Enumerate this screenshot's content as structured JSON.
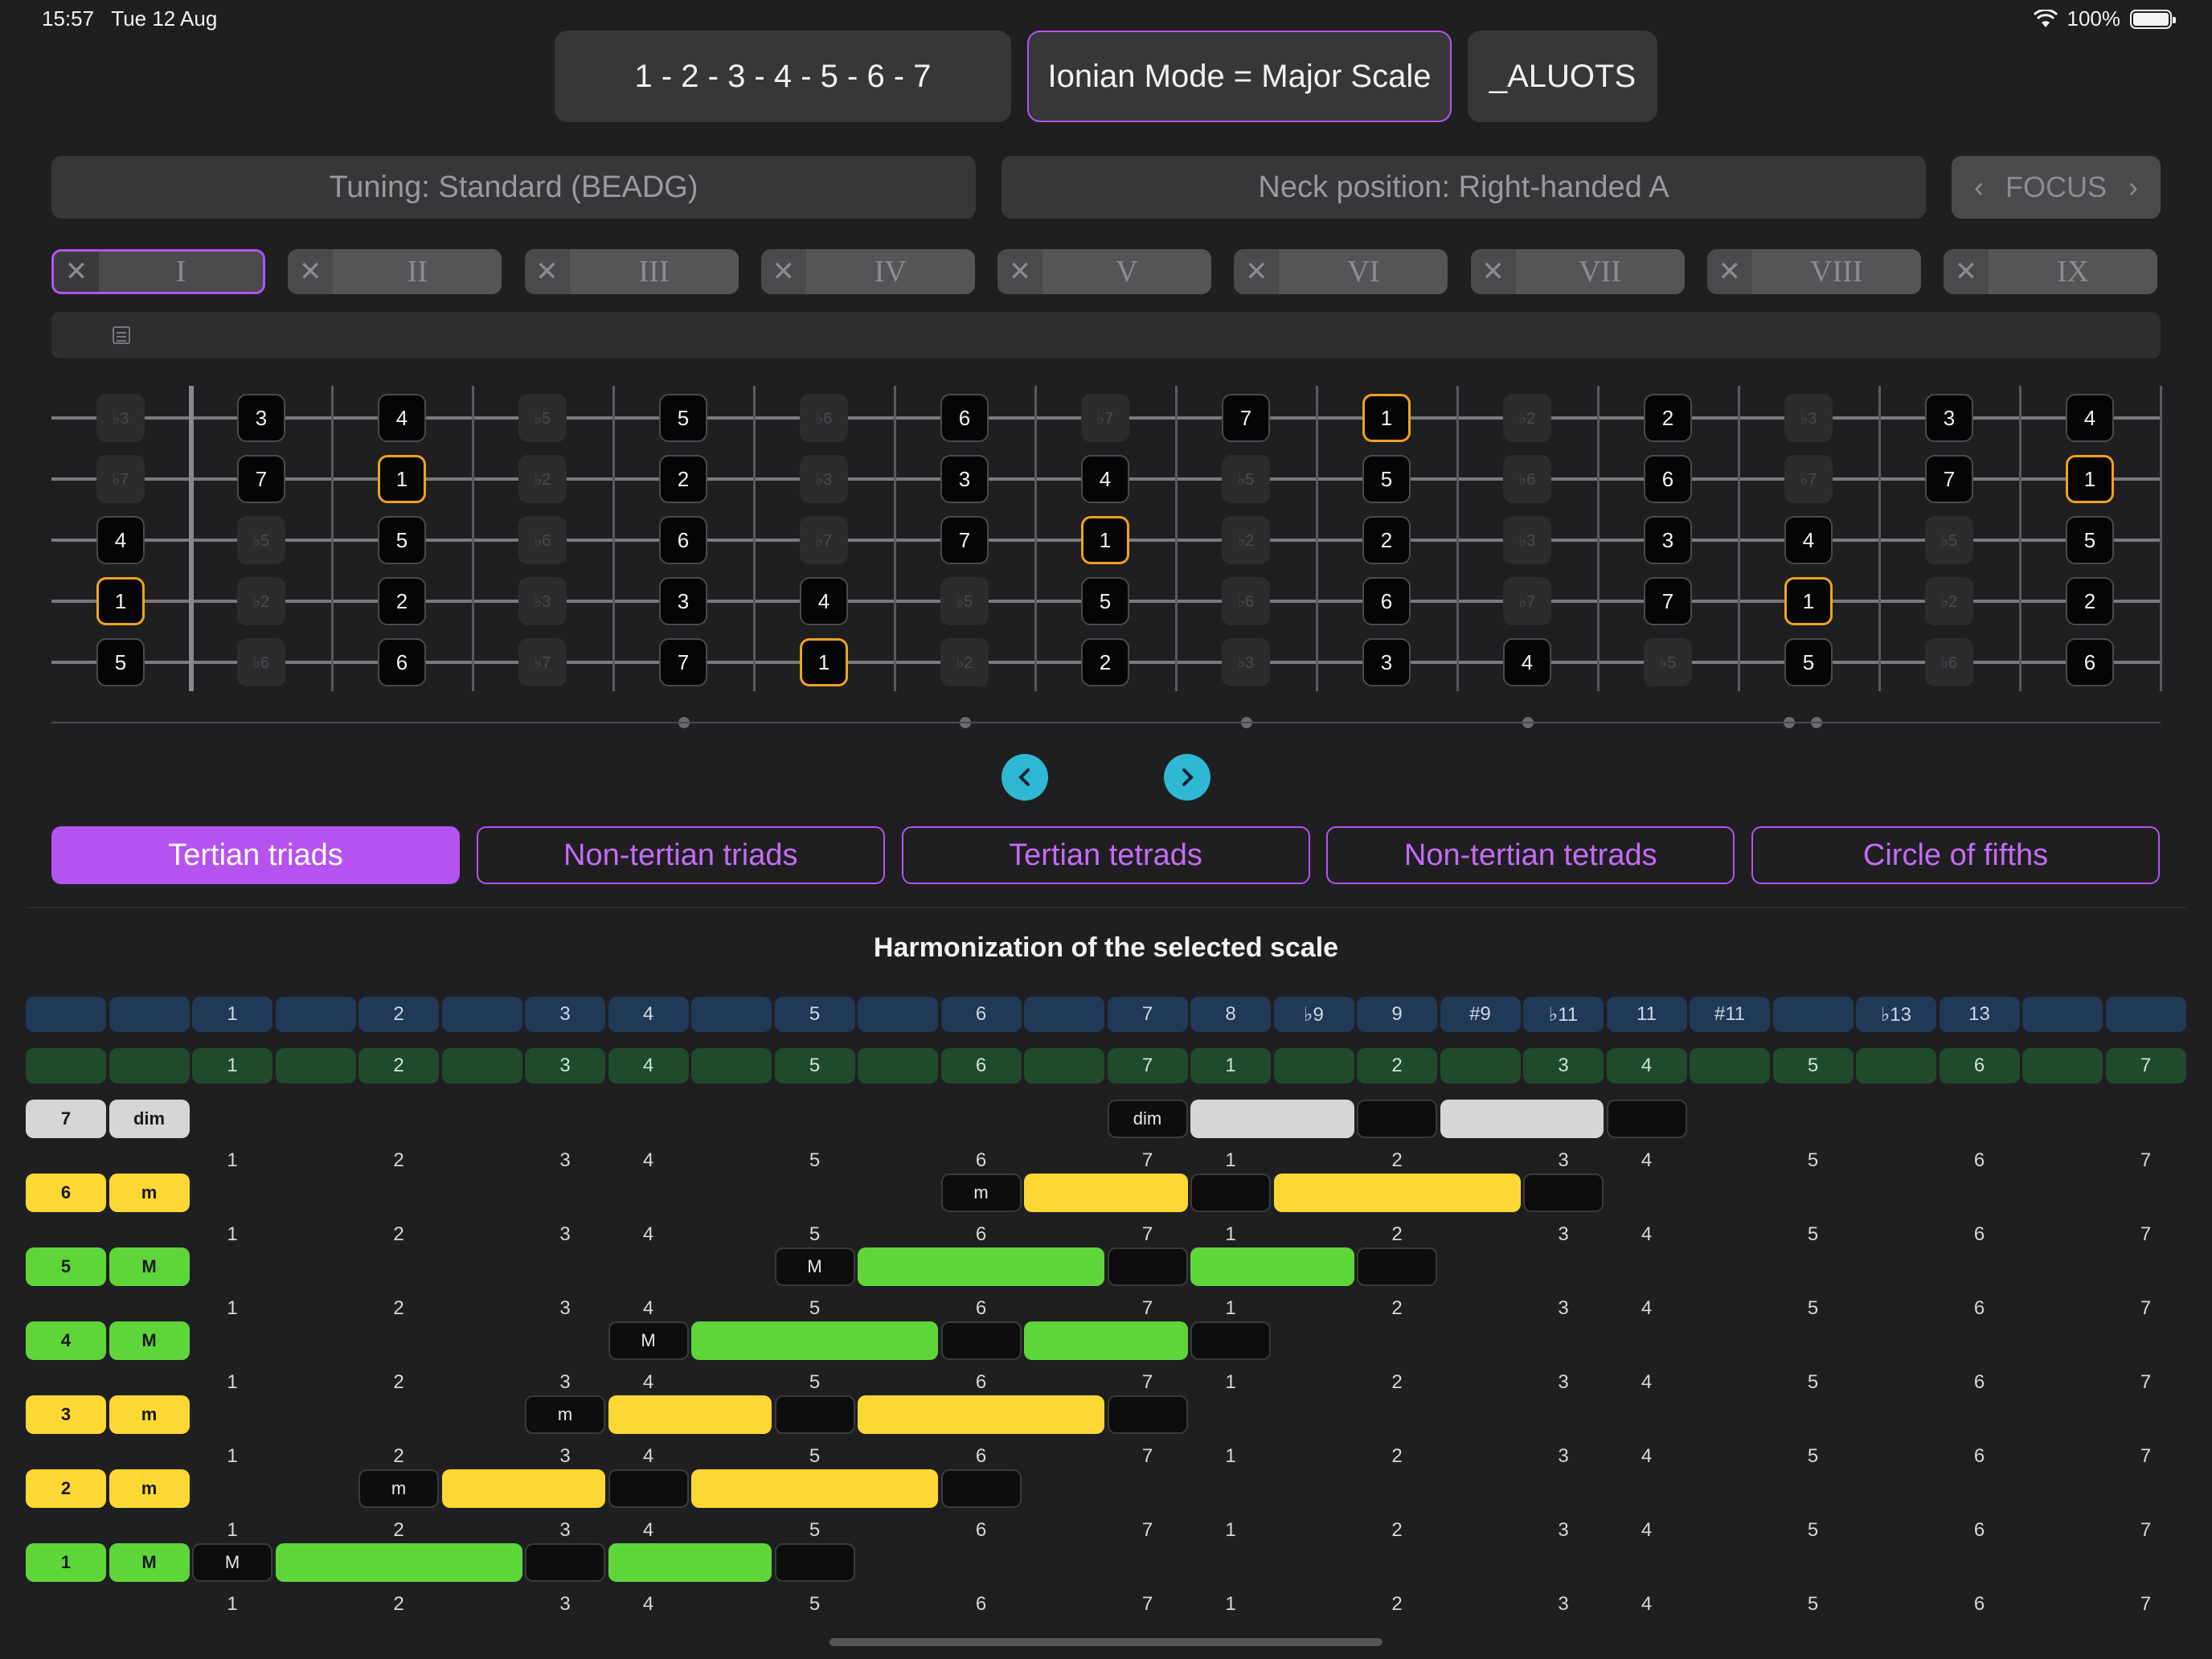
{
  "status": {
    "time": "15:57",
    "date": "Tue 12 Aug",
    "battery": "100%"
  },
  "top": {
    "intervals": "1 - 2 - 3 - 4 - 5 - 6 - 7",
    "mode": "Ionian Mode = Major Scale",
    "name": "_ALUOTS"
  },
  "settings": {
    "tuning": "Tuning: Standard (BEADG)",
    "neck": "Neck position: Right-handed A",
    "focus": "FOCUS"
  },
  "positions": [
    "I",
    "II",
    "III",
    "IV",
    "V",
    "VI",
    "VII",
    "VIII",
    "IX"
  ],
  "fretboard": {
    "strings": [
      [
        "♭3",
        "3",
        "4",
        "♭5",
        "5",
        "♭6",
        "6",
        "♭7",
        "7",
        "1",
        "♭2",
        "2",
        "♭3",
        "3",
        "4"
      ],
      [
        "♭7",
        "7",
        "1",
        "♭2",
        "2",
        "♭3",
        "3",
        "4",
        "♭5",
        "5",
        "♭6",
        "6",
        "♭7",
        "7",
        "1"
      ],
      [
        "4",
        "♭5",
        "5",
        "♭6",
        "6",
        "♭7",
        "7",
        "1",
        "♭2",
        "2",
        "♭3",
        "3",
        "4",
        "♭5",
        "5"
      ],
      [
        "1",
        "♭2",
        "2",
        "♭3",
        "3",
        "4",
        "♭5",
        "5",
        "♭6",
        "6",
        "♭7",
        "7",
        "1",
        "♭2",
        "2"
      ],
      [
        "5",
        "♭6",
        "6",
        "♭7",
        "7",
        "1",
        "♭2",
        "2",
        "♭3",
        "3",
        "4",
        "♭5",
        "5",
        "♭6",
        "6"
      ]
    ]
  },
  "mode_tabs": [
    "Tertian triads",
    "Non-tertian triads",
    "Tertian tetrads",
    "Non-tertian tetrads",
    "Circle of fifths"
  ],
  "harmonization": {
    "title": "Harmonization of the selected scale",
    "blue_row": [
      "",
      "",
      "1",
      "",
      "2",
      "",
      "3",
      "4",
      "",
      "5",
      "",
      "6",
      "",
      "7",
      "8",
      "♭9",
      "9",
      "#9",
      "♭11",
      "11",
      "#11",
      "",
      "♭13",
      "13",
      "",
      ""
    ],
    "green_row": [
      "",
      "",
      "1",
      "",
      "2",
      "",
      "3",
      "4",
      "",
      "5",
      "",
      "6",
      "",
      "7",
      "1",
      "",
      "2",
      "",
      "3",
      "4",
      "",
      "5",
      "",
      "6",
      "",
      "7"
    ],
    "degree_numbers": [
      "1",
      "2",
      "3",
      "4",
      "5",
      "6",
      "7",
      "1",
      "2",
      "3",
      "4",
      "5",
      "6",
      "7"
    ],
    "rows": [
      {
        "degree": "7",
        "quality": "dim",
        "color": "#d6d6d8"
      },
      {
        "degree": "6",
        "quality": "m",
        "color": "#fdd835"
      },
      {
        "degree": "5",
        "quality": "M",
        "color": "#5ed63a"
      },
      {
        "degree": "4",
        "quality": "M",
        "color": "#5ed63a"
      },
      {
        "degree": "3",
        "quality": "m",
        "color": "#fdd835"
      },
      {
        "degree": "2",
        "quality": "m",
        "color": "#fdd835"
      },
      {
        "degree": "1",
        "quality": "M",
        "color": "#5ed63a"
      }
    ]
  },
  "colors": {
    "accent": "#b553f0",
    "root_border": "#f0a21e",
    "nav_button": "#2eb8d4"
  }
}
